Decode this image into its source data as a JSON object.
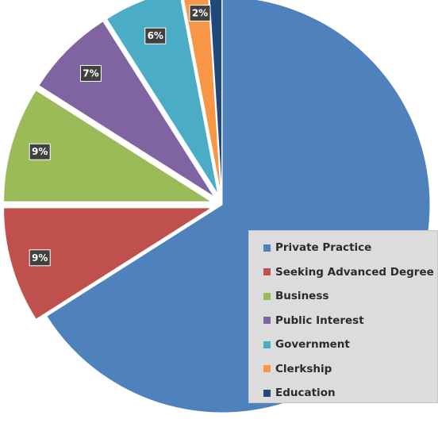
{
  "chart_data": {
    "type": "pie",
    "title": "",
    "categories": [
      "Private Practice",
      "Seeking Advanced Degree",
      "Business",
      "Public Interest",
      "Government",
      "Clerkship",
      "Education"
    ],
    "values": [
      66,
      9,
      9,
      7,
      6,
      2,
      1
    ],
    "data_labels": [
      "66%",
      "9%",
      "9%",
      "7%",
      "6%",
      "2%",
      "1%"
    ],
    "colors": [
      "#4f81bd",
      "#c0504d",
      "#9bbb59",
      "#8064a2",
      "#4bacc6",
      "#f79646",
      "#1f497d"
    ],
    "exploded_slices": [
      "Seeking Advanced Degree",
      "Business",
      "Public Interest",
      "Government",
      "Clerkship",
      "Education"
    ],
    "legend_position": "bottom-right",
    "grid": false
  }
}
